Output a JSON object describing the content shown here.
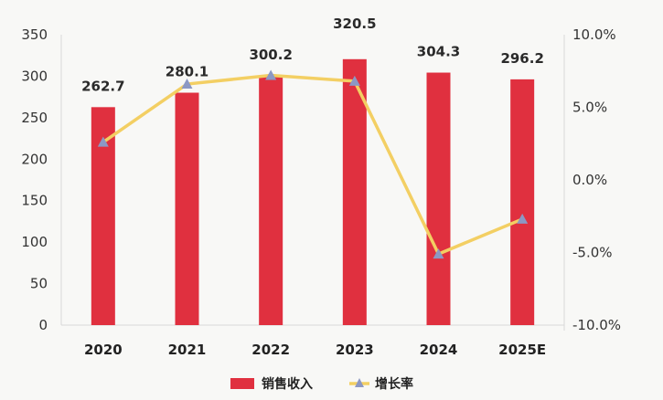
{
  "chart_data": {
    "type": "bar",
    "categories": [
      "2020",
      "2021",
      "2022",
      "2023",
      "2024",
      "2025E"
    ],
    "series": [
      {
        "name": "销售收入",
        "type": "bar",
        "axis": "left",
        "color": "#e0303f",
        "values": [
          262.7,
          280.1,
          300.2,
          320.5,
          304.3,
          296.2
        ],
        "data_labels": [
          "262.7",
          "280.1",
          "300.2",
          "320.5",
          "304.3",
          "296.2"
        ]
      },
      {
        "name": "增长率",
        "type": "line",
        "axis": "right",
        "color": "#f3cf63",
        "marker_color": "#8c98c4",
        "values": [
          2.6,
          6.6,
          7.2,
          6.8,
          -5.1,
          -2.7
        ]
      }
    ],
    "y_left": {
      "lim": [
        0,
        350
      ],
      "ticks": [
        "0",
        "50",
        "100",
        "150",
        "200",
        "250",
        "300",
        "350"
      ]
    },
    "y_right": {
      "lim": [
        -10,
        10
      ],
      "ticks": [
        "-10.0%",
        "-5.0%",
        "0.0%",
        "5.0%",
        "10.0%"
      ]
    },
    "grid": false,
    "legend_position": "bottom"
  }
}
